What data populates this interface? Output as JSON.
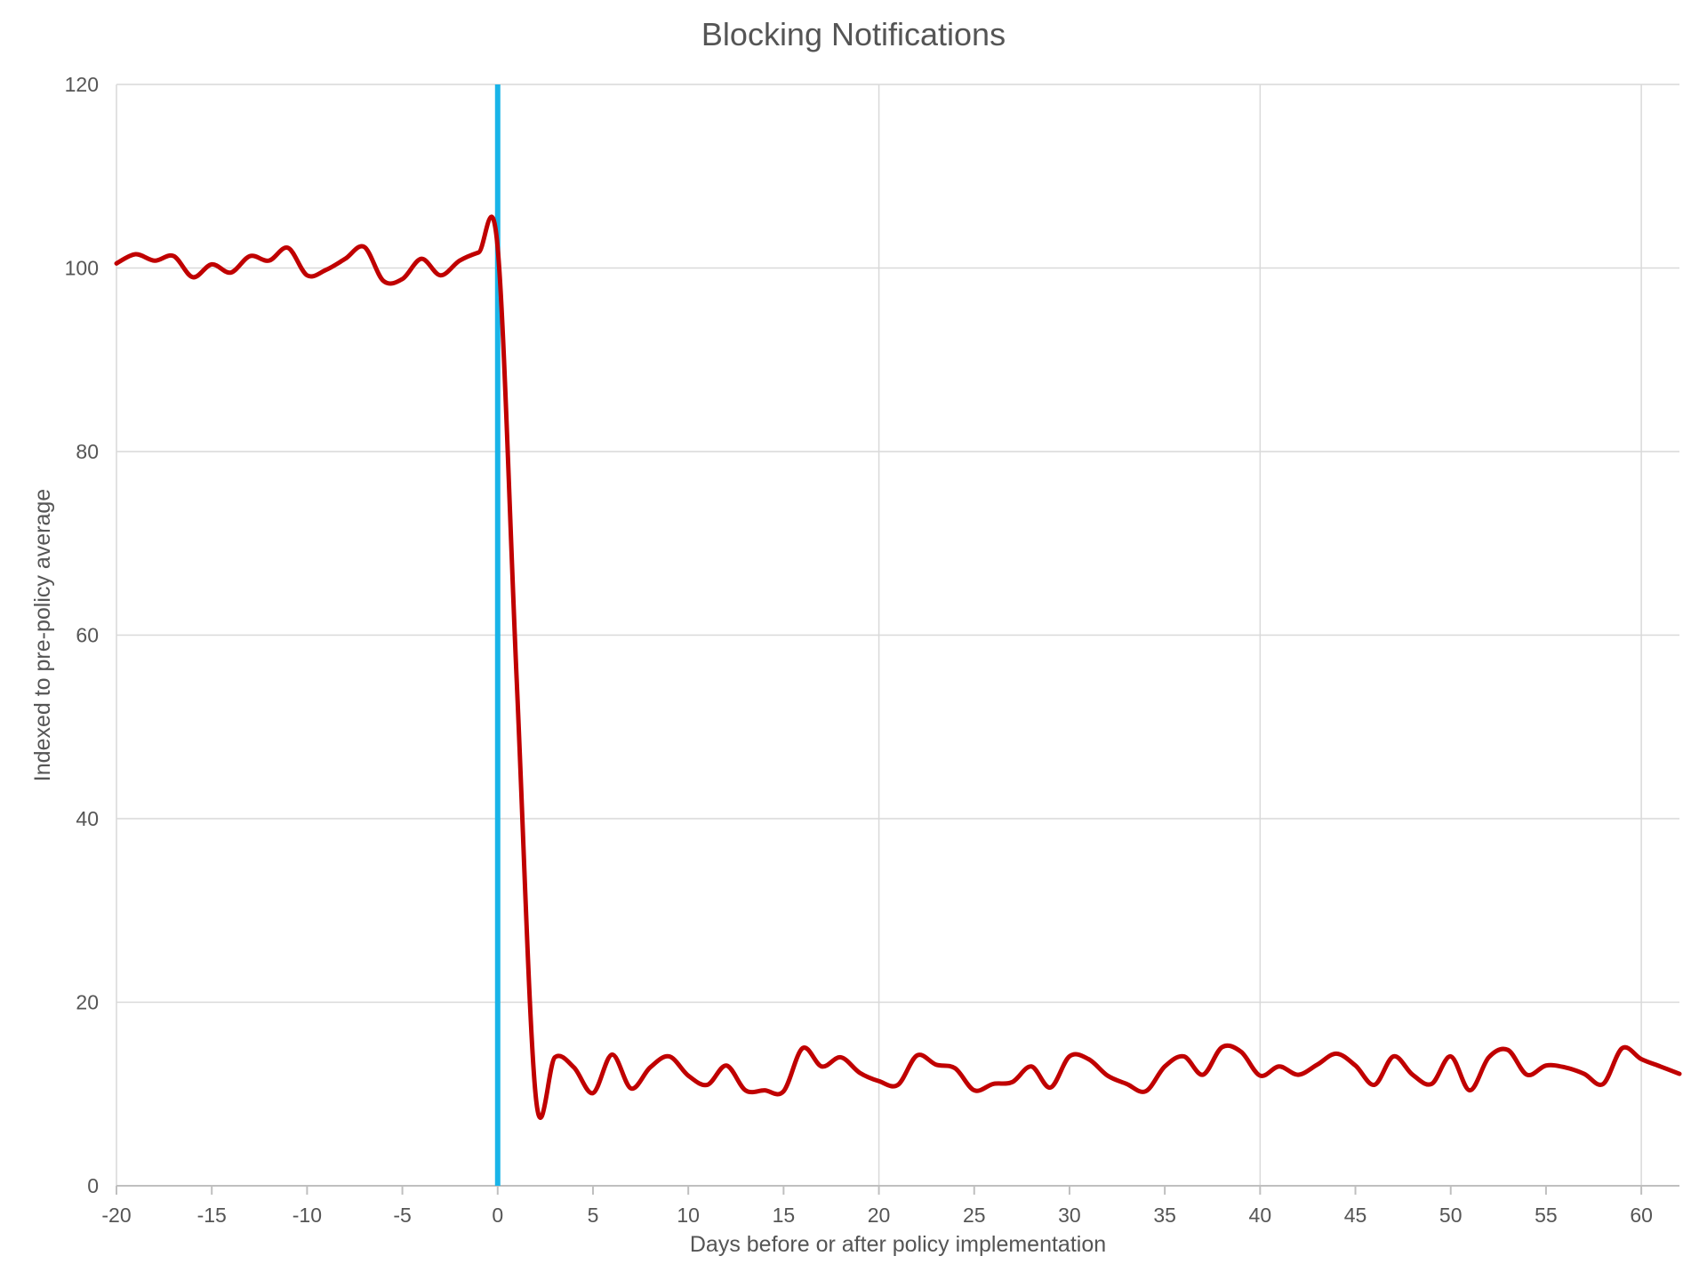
{
  "chart_data": {
    "type": "line",
    "title": "Blocking Notifications",
    "xlabel": "Days before or after policy implementation",
    "ylabel": "Indexed to pre-policy average",
    "xlim": [
      -20,
      62
    ],
    "ylim": [
      0,
      120
    ],
    "x_ticks": [
      -20,
      -15,
      -10,
      -5,
      0,
      5,
      10,
      15,
      20,
      25,
      30,
      35,
      40,
      45,
      50,
      55,
      60
    ],
    "x_tick_labels": [
      "-20",
      "-15",
      "-10",
      "-5",
      "0",
      "5",
      "10",
      "15",
      "20",
      "25",
      "30",
      "35",
      "40",
      "45",
      "50",
      "55",
      "60"
    ],
    "y_ticks": [
      0,
      20,
      40,
      60,
      80,
      100,
      120
    ],
    "y_tick_labels": [
      "0",
      "20",
      "40",
      "60",
      "80",
      "100",
      "120"
    ],
    "grid": true,
    "colors": {
      "series": "#c00000",
      "marker_line": "#19b4e8",
      "grid": "#d9d9d9",
      "text": "#555555"
    },
    "vertical_marker": {
      "x": 0
    },
    "series": [
      {
        "x": [
          -20,
          -19,
          -18,
          -17,
          -16,
          -15,
          -14,
          -13,
          -12,
          -11,
          -10,
          -9,
          -8,
          -7,
          -6,
          -5,
          -4,
          -3,
          -2,
          -1,
          0,
          1,
          2,
          3,
          4,
          5,
          6,
          7,
          8,
          9,
          10,
          11,
          12,
          13,
          14,
          15,
          16,
          17,
          18,
          19,
          20,
          21,
          22,
          23,
          24,
          25,
          26,
          27,
          28,
          29,
          30,
          31,
          32,
          33,
          34,
          35,
          36,
          37,
          38,
          39,
          40,
          41,
          42,
          43,
          44,
          45,
          46,
          47,
          48,
          49,
          50,
          51,
          52,
          53,
          54,
          55,
          56,
          57,
          58,
          59,
          60,
          61,
          62
        ],
        "values": [
          100.5,
          101.5,
          100.8,
          101.3,
          99.0,
          100.4,
          99.5,
          101.3,
          100.8,
          102.2,
          99.2,
          99.8,
          101.0,
          102.3,
          98.6,
          98.8,
          101.0,
          99.2,
          100.8,
          101.7,
          102.2,
          55.0,
          9.7,
          14.0,
          12.9,
          10.1,
          14.3,
          10.6,
          12.9,
          14.1,
          12.0,
          11.0,
          13.1,
          10.4,
          10.4,
          10.3,
          15.0,
          13.0,
          14.0,
          12.3,
          11.4,
          11.0,
          14.2,
          13.2,
          12.8,
          10.4,
          11.1,
          11.3,
          13.0,
          10.7,
          14.1,
          13.8,
          12.0,
          11.1,
          10.3,
          13.0,
          14.1,
          12.1,
          15.1,
          14.6,
          12.0,
          13.0,
          12.1,
          13.2,
          14.4,
          13.1,
          11.0,
          14.1,
          12.1,
          11.1,
          14.1,
          10.4,
          14.0,
          14.8,
          12.1,
          13.1,
          12.9,
          12.2,
          11.1,
          15.0,
          13.8,
          13.0,
          12.2
        ]
      }
    ]
  }
}
